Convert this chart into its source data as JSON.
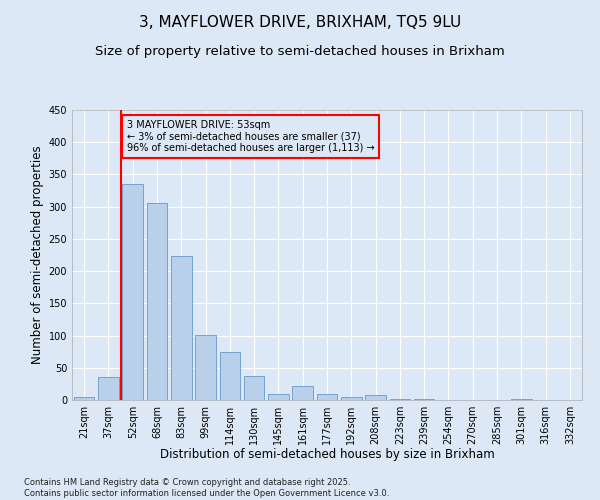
{
  "title_line1": "3, MAYFLOWER DRIVE, BRIXHAM, TQ5 9LU",
  "title_line2": "Size of property relative to semi-detached houses in Brixham",
  "xlabel": "Distribution of semi-detached houses by size in Brixham",
  "ylabel": "Number of semi-detached properties",
  "footnote": "Contains HM Land Registry data © Crown copyright and database right 2025.\nContains public sector information licensed under the Open Government Licence v3.0.",
  "bin_labels": [
    "21sqm",
    "37sqm",
    "52sqm",
    "68sqm",
    "83sqm",
    "99sqm",
    "114sqm",
    "130sqm",
    "145sqm",
    "161sqm",
    "177sqm",
    "192sqm",
    "208sqm",
    "223sqm",
    "239sqm",
    "254sqm",
    "270sqm",
    "285sqm",
    "301sqm",
    "316sqm",
    "332sqm"
  ],
  "bar_values": [
    4,
    35,
    335,
    305,
    223,
    101,
    75,
    38,
    10,
    21,
    10,
    4,
    7,
    1,
    1,
    0,
    0,
    0,
    1,
    0,
    0
  ],
  "bar_color": "#b8d0ea",
  "bar_edge_color": "#6699cc",
  "vline_x_index": 1.5,
  "vline_color": "red",
  "annotation_line1": "3 MAYFLOWER DRIVE: 53sqm",
  "annotation_line2": "← 3% of semi-detached houses are smaller (37)",
  "annotation_line3": "96% of semi-detached houses are larger (1,113) →",
  "annotation_box_facecolor": "#dce8f5",
  "annotation_box_edgecolor": "red",
  "ylim": [
    0,
    450
  ],
  "yticks": [
    0,
    50,
    100,
    150,
    200,
    250,
    300,
    350,
    400,
    450
  ],
  "background_color": "#dce8f5",
  "grid_color": "white",
  "title_fontsize": 11,
  "subtitle_fontsize": 9.5,
  "axis_label_fontsize": 8.5,
  "tick_fontsize": 7,
  "footnote_fontsize": 6
}
